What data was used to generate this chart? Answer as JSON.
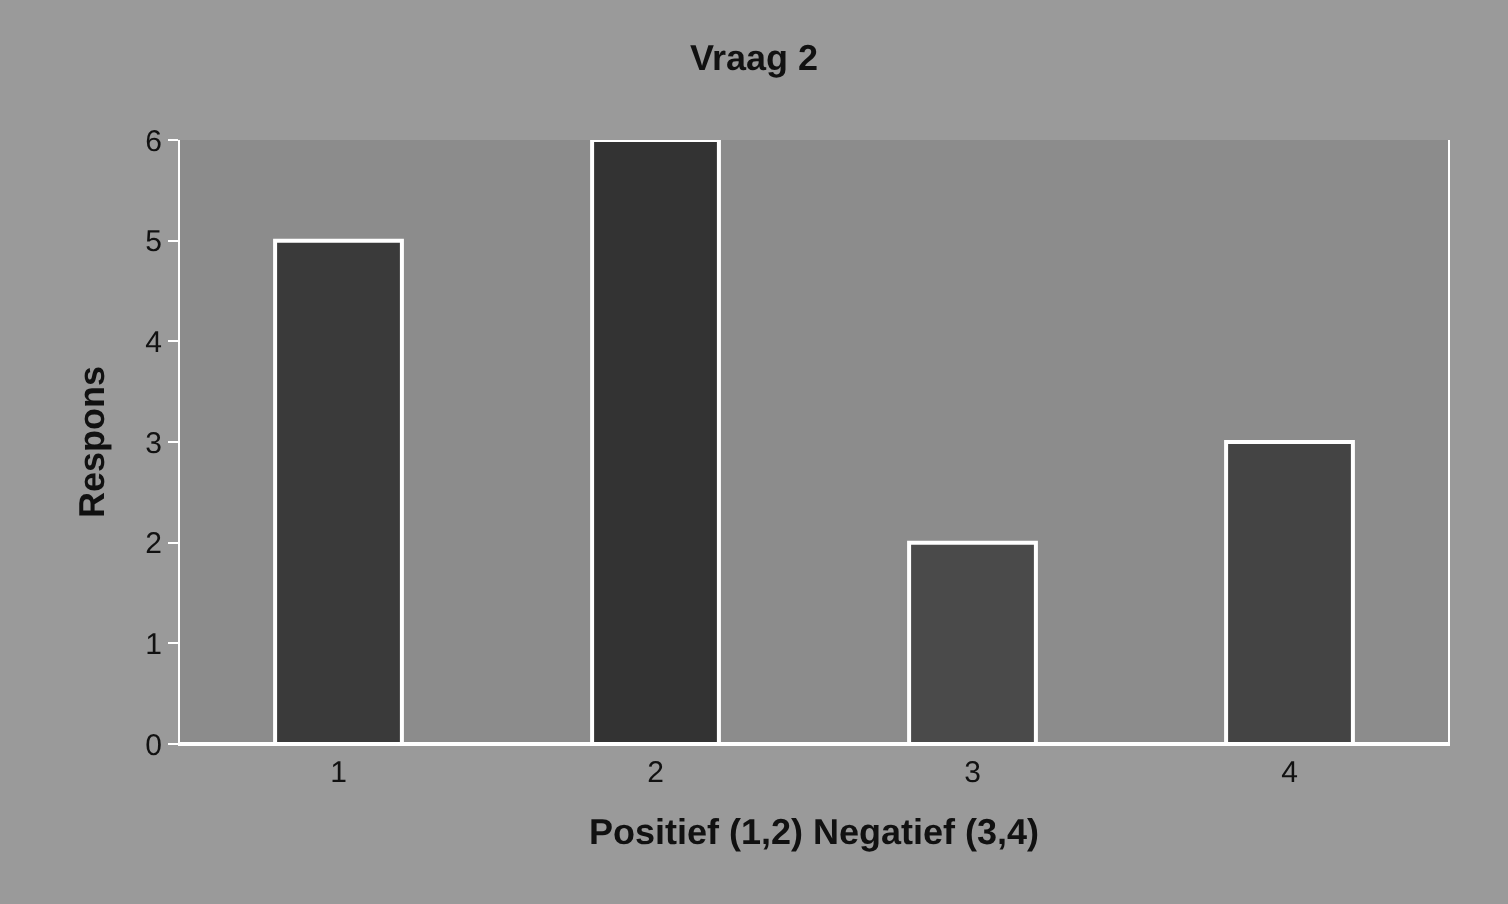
{
  "chart_data": {
    "type": "bar",
    "title": "Vraag 2",
    "xlabel": "Positief (1,2) Negatief (3,4)",
    "ylabel": "Respons",
    "categories": [
      "1",
      "2",
      "3",
      "4"
    ],
    "values": [
      5,
      6,
      2,
      3
    ],
    "colors": [
      "#3a3a3a",
      "#333333",
      "#4a4a4a",
      "#444444"
    ],
    "ylim": [
      0,
      6
    ],
    "yticks": [
      0,
      1,
      2,
      3,
      4,
      5,
      6
    ]
  }
}
